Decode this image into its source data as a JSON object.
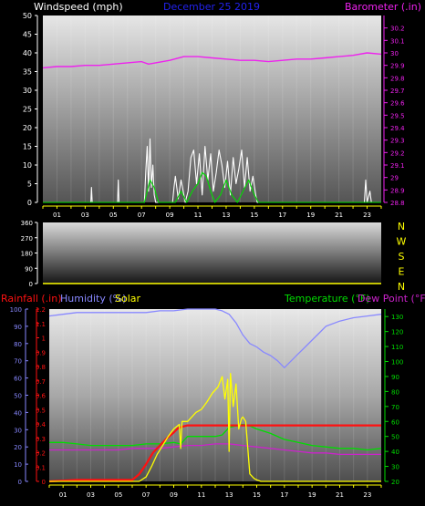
{
  "chart_data": [
    {
      "type": "line",
      "title": "December 25 2019",
      "ylabel": "Windspeed (mph)",
      "y2label": "Barometer (.in)",
      "x_ticks": [
        "01",
        "03",
        "05",
        "07",
        "09",
        "11",
        "13",
        "15",
        "17",
        "19",
        "21",
        "23"
      ],
      "ylim": [
        0,
        50
      ],
      "y_ticks": [
        0,
        5,
        10,
        15,
        20,
        25,
        30,
        35,
        40,
        45,
        50
      ],
      "y2lim": [
        28.8,
        30.3
      ],
      "y2_ticks": [
        "28.8",
        "28.9",
        "29",
        "29.1",
        "29.2",
        "29.3",
        "29.4",
        "29.5",
        "29.6",
        "29.7",
        "29.8",
        "29.9",
        "30",
        "30.1",
        "30.2"
      ],
      "colors": {
        "gust": "#ffffff",
        "wind": "#00dd00",
        "barometer": "#ee22ee",
        "axis_left": "#ffffff",
        "axis_right": "#ee22ee",
        "title": "#2222ee"
      },
      "series": [
        {
          "key": "barometer",
          "axis": "right",
          "x": [
            0,
            1,
            2,
            3,
            4,
            5,
            6,
            7,
            7.5,
            8,
            9,
            10,
            11,
            12,
            13,
            14,
            15,
            16,
            17,
            18,
            19,
            20,
            21,
            22,
            23,
            24
          ],
          "y": [
            29.88,
            29.89,
            29.89,
            29.9,
            29.9,
            29.91,
            29.92,
            29.93,
            29.91,
            29.92,
            29.94,
            29.97,
            29.97,
            29.96,
            29.95,
            29.94,
            29.94,
            29.93,
            29.94,
            29.95,
            29.95,
            29.96,
            29.97,
            29.98,
            30.0,
            29.99
          ]
        },
        {
          "key": "gust",
          "axis": "left",
          "x": [
            0,
            3.4,
            3.45,
            3.5,
            5.3,
            5.35,
            5.4,
            7.2,
            7.3,
            7.4,
            7.5,
            7.6,
            7.7,
            7.8,
            7.9,
            8.0,
            9.2,
            9.3,
            9.4,
            9.6,
            9.8,
            10.0,
            10.1,
            10.3,
            10.5,
            10.7,
            10.9,
            11.1,
            11.3,
            11.5,
            11.7,
            11.9,
            12.1,
            12.3,
            12.5,
            12.7,
            12.9,
            13.1,
            13.3,
            13.5,
            13.7,
            13.9,
            14.1,
            14.3,
            14.5,
            14.7,
            14.9,
            15.1,
            15.2,
            22.8,
            22.9,
            23.0,
            23.2,
            23.3,
            24
          ],
          "y": [
            0,
            0,
            4,
            0,
            0,
            6,
            0,
            0,
            8,
            15,
            3,
            17,
            4,
            10,
            2,
            0,
            0,
            4,
            7,
            1,
            6,
            2,
            0,
            3,
            12,
            14,
            5,
            13,
            2,
            15,
            6,
            13,
            3,
            8,
            14,
            10,
            4,
            11,
            2,
            12,
            5,
            9,
            14,
            4,
            12,
            3,
            7,
            2,
            0,
            0,
            6,
            0,
            3,
            0,
            0
          ]
        },
        {
          "key": "wind",
          "axis": "left",
          "x": [
            0,
            7.2,
            7.6,
            7.9,
            8.2,
            9.4,
            9.8,
            10.2,
            10.6,
            11.0,
            11.3,
            11.6,
            11.9,
            12.2,
            12.6,
            13.0,
            13.4,
            13.8,
            14.2,
            14.6,
            15.0,
            15.3,
            24
          ],
          "y": [
            0,
            0,
            6,
            4,
            0,
            0,
            3,
            0,
            3,
            5,
            8,
            7,
            3,
            0,
            2,
            6,
            2,
            0,
            3,
            6,
            2,
            0,
            0
          ]
        }
      ]
    },
    {
      "type": "line",
      "y_ticks": [
        0,
        90,
        180,
        270,
        360
      ],
      "ylim": [
        0,
        360
      ],
      "direction_labels": [
        "N",
        "W",
        "S",
        "E",
        "N"
      ],
      "colors": {
        "axis": "#ffffff",
        "labels": "#ffff00",
        "line": "#ffff00"
      },
      "series": [
        {
          "key": "direction",
          "x": [
            0,
            24
          ],
          "y": [
            0,
            0
          ]
        }
      ]
    },
    {
      "type": "line",
      "labels": {
        "rainfall": "Rainfall (.in)",
        "humidity": "Humidity (%)",
        "solar": "Solar",
        "temperature": "Temperature (°F)",
        "dewpoint": "Dew Point (°F)"
      },
      "x_ticks": [
        "01",
        "03",
        "05",
        "07",
        "09",
        "11",
        "13",
        "15",
        "17",
        "19",
        "21",
        "23"
      ],
      "rain_ticks": [
        "0",
        "0.1",
        "0.2",
        "0.3",
        "0.4",
        "0.5",
        "0.6",
        "0.7",
        "0.8",
        "0.9",
        "1",
        "1.1",
        "1.2"
      ],
      "rain_lim": [
        0,
        1.2
      ],
      "humidity_ticks": [
        0,
        10,
        20,
        30,
        40,
        50,
        60,
        70,
        80,
        90,
        100
      ],
      "humidity_lim": [
        0,
        100
      ],
      "temp_ticks": [
        20,
        30,
        40,
        50,
        60,
        70,
        80,
        90,
        100,
        110,
        120,
        130
      ],
      "temp_lim": [
        20,
        135
      ],
      "colors": {
        "rainfall": "#ff1111",
        "humidity": "#8888ff",
        "solar": "#ffff00",
        "temperature": "#00dd00",
        "dewpoint": "#cc22cc",
        "rain_axis": "#ff1111",
        "humidity_axis": "#8888ff",
        "temp_axis": "#00dd00"
      },
      "series": [
        {
          "key": "humidity",
          "axis": "humidity",
          "x": [
            0,
            1,
            2,
            3,
            4,
            5,
            6,
            7,
            8,
            9,
            10,
            11,
            12,
            12.5,
            13,
            13.5,
            14,
            14.5,
            15,
            15.5,
            16,
            16.5,
            17,
            17.5,
            18,
            18.5,
            19,
            19.5,
            20,
            21,
            22,
            23,
            24
          ],
          "y": [
            96,
            97,
            98,
            98,
            98,
            98,
            98,
            98,
            99,
            99,
            100,
            100,
            100,
            99,
            97,
            92,
            85,
            80,
            78,
            75,
            73,
            70,
            66,
            70,
            74,
            78,
            82,
            86,
            90,
            93,
            95,
            96,
            97
          ]
        },
        {
          "key": "temperature",
          "axis": "temp",
          "x": [
            0,
            1,
            2,
            3,
            4,
            5,
            6,
            7,
            8,
            9,
            9.5,
            10,
            11,
            12,
            12.5,
            13,
            14,
            14.5,
            15,
            16,
            17,
            18,
            19,
            20,
            21,
            22,
            23,
            24
          ],
          "y": [
            46,
            46,
            45,
            44,
            44,
            44,
            44,
            45,
            45,
            46,
            45,
            50,
            50,
            50,
            51,
            56,
            58,
            57,
            55,
            52,
            48,
            46,
            44,
            43,
            42,
            42,
            41,
            42
          ]
        },
        {
          "key": "dewpoint",
          "axis": "temp",
          "x": [
            0,
            1,
            2,
            3,
            4,
            5,
            6,
            7,
            8,
            9,
            10,
            11,
            12,
            13,
            14,
            15,
            16,
            17,
            18,
            19,
            20,
            21,
            22,
            23,
            24
          ],
          "y": [
            41,
            41,
            41,
            41,
            41,
            41,
            42,
            42,
            42,
            43,
            44,
            44,
            45,
            45,
            44,
            43,
            42,
            41,
            40,
            39,
            39,
            38,
            38,
            38,
            38
          ]
        },
        {
          "key": "rainfall",
          "axis": "rain",
          "x": [
            0,
            2,
            6,
            6.5,
            7,
            7.5,
            8,
            8.5,
            9,
            9.3,
            9.6,
            10,
            12,
            14,
            16,
            18,
            20,
            22,
            24
          ],
          "y": [
            0,
            0.01,
            0.01,
            0.05,
            0.12,
            0.2,
            0.25,
            0.3,
            0.34,
            0.37,
            0.38,
            0.39,
            0.39,
            0.39,
            0.39,
            0.39,
            0.39,
            0.39,
            0.39
          ]
        },
        {
          "key": "solar",
          "axis": "temp",
          "x": [
            0,
            6.5,
            7.0,
            7.4,
            7.8,
            8.2,
            8.6,
            9.0,
            9.4,
            9.5,
            9.6,
            10,
            10.6,
            11,
            11.4,
            11.8,
            12.2,
            12.5,
            12.7,
            12.9,
            13.0,
            13.1,
            13.3,
            13.5,
            13.7,
            13.9,
            14.0,
            14.2,
            14.5,
            14.8,
            15.0,
            15.3,
            16,
            24
          ],
          "y": [
            20,
            20,
            23,
            30,
            38,
            44,
            50,
            55,
            58,
            42,
            60,
            60,
            66,
            68,
            73,
            79,
            83,
            90,
            75,
            88,
            40,
            92,
            70,
            85,
            55,
            62,
            63,
            60,
            25,
            22,
            21,
            20,
            20,
            20
          ]
        }
      ]
    }
  ]
}
